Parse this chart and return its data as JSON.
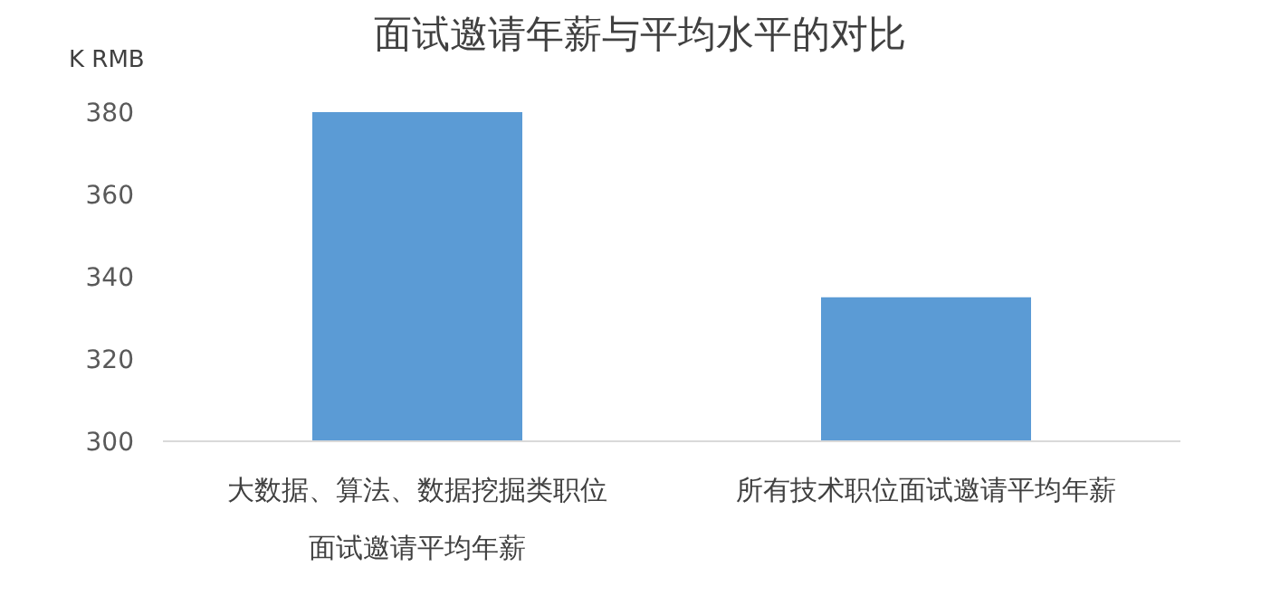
{
  "chart_data": {
    "type": "bar",
    "title": "面试邀请年薪与平均水平的对比",
    "ylabel": "K RMB",
    "categories": [
      "大数据、算法、数据挖掘类职位面试邀请平均年薪",
      "所有技术职位面试邀请平均年薪"
    ],
    "values": [
      380,
      335
    ],
    "color": "#5b9bd5",
    "ylim": [
      300,
      380
    ],
    "yticks": [
      300,
      320,
      340,
      360,
      380
    ],
    "grid": false
  }
}
